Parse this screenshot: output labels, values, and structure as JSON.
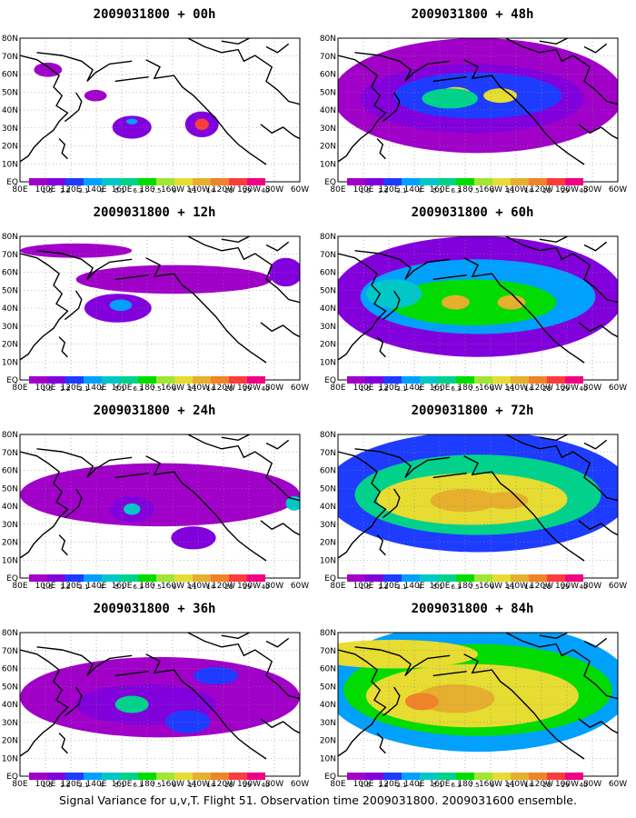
{
  "caption": "Signal Variance for u,v,T. Flight 51. Observation time 2009031800. 2009031600 ensemble.",
  "colors": [
    "#a000c8",
    "#8200dc",
    "#1e3cff",
    "#00a0ff",
    "#00c8c8",
    "#00d28c",
    "#00dc00",
    "#a0e632",
    "#e6dc32",
    "#e6af2d",
    "#f08228",
    "#fa3c3c",
    "#f00082"
  ],
  "colorbar_labels": [
    "1.6",
    "2.2",
    "3.1",
    "4",
    "5.1",
    "6.3",
    "7.5",
    "9",
    "11",
    "14",
    "21",
    "29",
    "40"
  ],
  "lat_labels": [
    "EQ",
    "10N",
    "20N",
    "30N",
    "40N",
    "50N",
    "60N",
    "70N",
    "80N"
  ],
  "lon_labels": [
    "80E",
    "100E",
    "120E",
    "140E",
    "160E",
    "180",
    "160W",
    "140W",
    "120W",
    "100W",
    "80W",
    "60W"
  ],
  "panels": [
    {
      "title": "2009031800 + 00h",
      "level": 0
    },
    {
      "title": "2009031800 + 12h",
      "level": 1
    },
    {
      "title": "2009031800 + 24h",
      "level": 2
    },
    {
      "title": "2009031800 + 36h",
      "level": 3
    },
    {
      "title": "2009031800 + 48h",
      "level": 4
    },
    {
      "title": "2009031800 + 60h",
      "level": 5
    },
    {
      "title": "2009031800 + 72h",
      "level": 6
    },
    {
      "title": "2009031800 + 84h",
      "level": 7
    }
  ]
}
